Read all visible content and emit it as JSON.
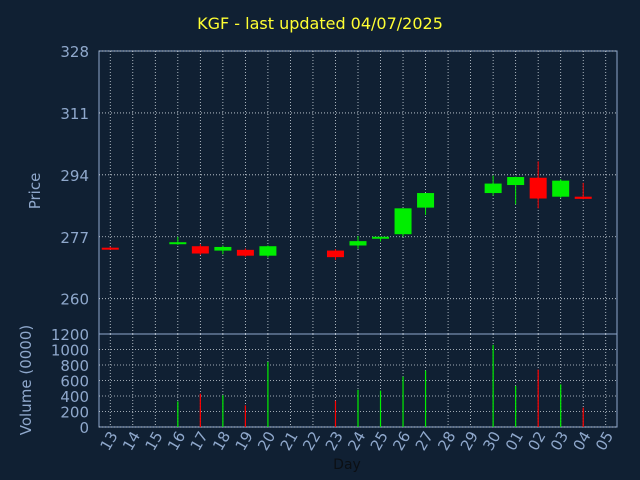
{
  "chart_data": [
    {
      "type": "candlestick",
      "title": "KGF - last updated 04/07/2025",
      "ylabel": "Price",
      "ylim": [
        250.3,
        328
      ],
      "yticks": [
        328,
        311,
        294,
        277,
        260
      ],
      "grid": true,
      "x": [
        "13",
        "14",
        "15",
        "16",
        "17",
        "18",
        "19",
        "20",
        "21",
        "22",
        "23",
        "24",
        "25",
        "26",
        "27",
        "28",
        "29",
        "30",
        "01",
        "02",
        "03",
        "04",
        "05"
      ],
      "candles": [
        {
          "x": "13",
          "open": 274.0,
          "high": 274.3,
          "low": 273.7,
          "close": 274.0,
          "color": "red"
        },
        {
          "x": "16",
          "open": 275.3,
          "high": 277.0,
          "low": 274.8,
          "close": 275.5,
          "color": "green"
        },
        {
          "x": "17",
          "open": 274.4,
          "high": 275.0,
          "low": 272.0,
          "close": 272.4,
          "color": "red"
        },
        {
          "x": "18",
          "open": 273.2,
          "high": 274.6,
          "low": 272.2,
          "close": 274.2,
          "color": "green"
        },
        {
          "x": "19",
          "open": 273.4,
          "high": 273.8,
          "low": 271.5,
          "close": 271.8,
          "color": "red"
        },
        {
          "x": "20",
          "open": 271.8,
          "high": 274.6,
          "low": 271.3,
          "close": 274.4,
          "color": "green"
        },
        {
          "x": "23",
          "open": 273.2,
          "high": 273.6,
          "low": 270.6,
          "close": 271.4,
          "color": "red"
        },
        {
          "x": "24",
          "open": 274.6,
          "high": 277.2,
          "low": 273.7,
          "close": 275.8,
          "color": "green"
        },
        {
          "x": "25",
          "open": 276.5,
          "high": 277.0,
          "low": 275.7,
          "close": 277.0,
          "color": "green"
        },
        {
          "x": "26",
          "open": 277.7,
          "high": 284.8,
          "low": 277.0,
          "close": 284.8,
          "color": "green"
        },
        {
          "x": "27",
          "open": 285.0,
          "high": 289.0,
          "low": 283.0,
          "close": 289.0,
          "color": "green"
        },
        {
          "x": "30",
          "open": 289.0,
          "high": 293.8,
          "low": 288.3,
          "close": 291.6,
          "color": "green"
        },
        {
          "x": "01",
          "open": 291.2,
          "high": 293.5,
          "low": 285.9,
          "close": 293.4,
          "color": "green"
        },
        {
          "x": "02",
          "open": 293.2,
          "high": 297.7,
          "low": 284.8,
          "close": 287.5,
          "color": "red"
        },
        {
          "x": "03",
          "open": 288.0,
          "high": 292.8,
          "low": 287.7,
          "close": 292.4,
          "color": "green"
        },
        {
          "x": "04",
          "open": 288.0,
          "high": 291.8,
          "low": 287.3,
          "close": 287.4,
          "color": "red"
        }
      ]
    },
    {
      "type": "bar",
      "ylabel": "Volume (0000)",
      "xlabel": "Day",
      "ylim": [
        0,
        1200
      ],
      "yticks": [
        1200,
        1000,
        800,
        600,
        400,
        200,
        0
      ],
      "grid": true,
      "categories": [
        "13",
        "14",
        "15",
        "16",
        "17",
        "18",
        "19",
        "20",
        "21",
        "22",
        "23",
        "24",
        "25",
        "26",
        "27",
        "28",
        "29",
        "30",
        "01",
        "02",
        "03",
        "04",
        "05"
      ],
      "bars": [
        {
          "x": "16",
          "value": 330,
          "color": "green"
        },
        {
          "x": "17",
          "value": 430,
          "color": "red"
        },
        {
          "x": "18",
          "value": 410,
          "color": "green"
        },
        {
          "x": "19",
          "value": 280,
          "color": "red"
        },
        {
          "x": "20",
          "value": 840,
          "color": "green"
        },
        {
          "x": "23",
          "value": 340,
          "color": "red"
        },
        {
          "x": "24",
          "value": 480,
          "color": "green"
        },
        {
          "x": "25",
          "value": 470,
          "color": "green"
        },
        {
          "x": "26",
          "value": 650,
          "color": "green"
        },
        {
          "x": "27",
          "value": 730,
          "color": "green"
        },
        {
          "x": "30",
          "value": 1060,
          "color": "green"
        },
        {
          "x": "01",
          "value": 530,
          "color": "green"
        },
        {
          "x": "02",
          "value": 740,
          "color": "red"
        },
        {
          "x": "03",
          "value": 550,
          "color": "green"
        },
        {
          "x": "04",
          "value": 250,
          "color": "red"
        }
      ]
    }
  ],
  "colors": {
    "background": "#102033",
    "grid": "#d0d8e0",
    "axis": "#8fa8cc",
    "title": "#ffff33",
    "up": "#00ee00",
    "down": "#ff0000"
  }
}
